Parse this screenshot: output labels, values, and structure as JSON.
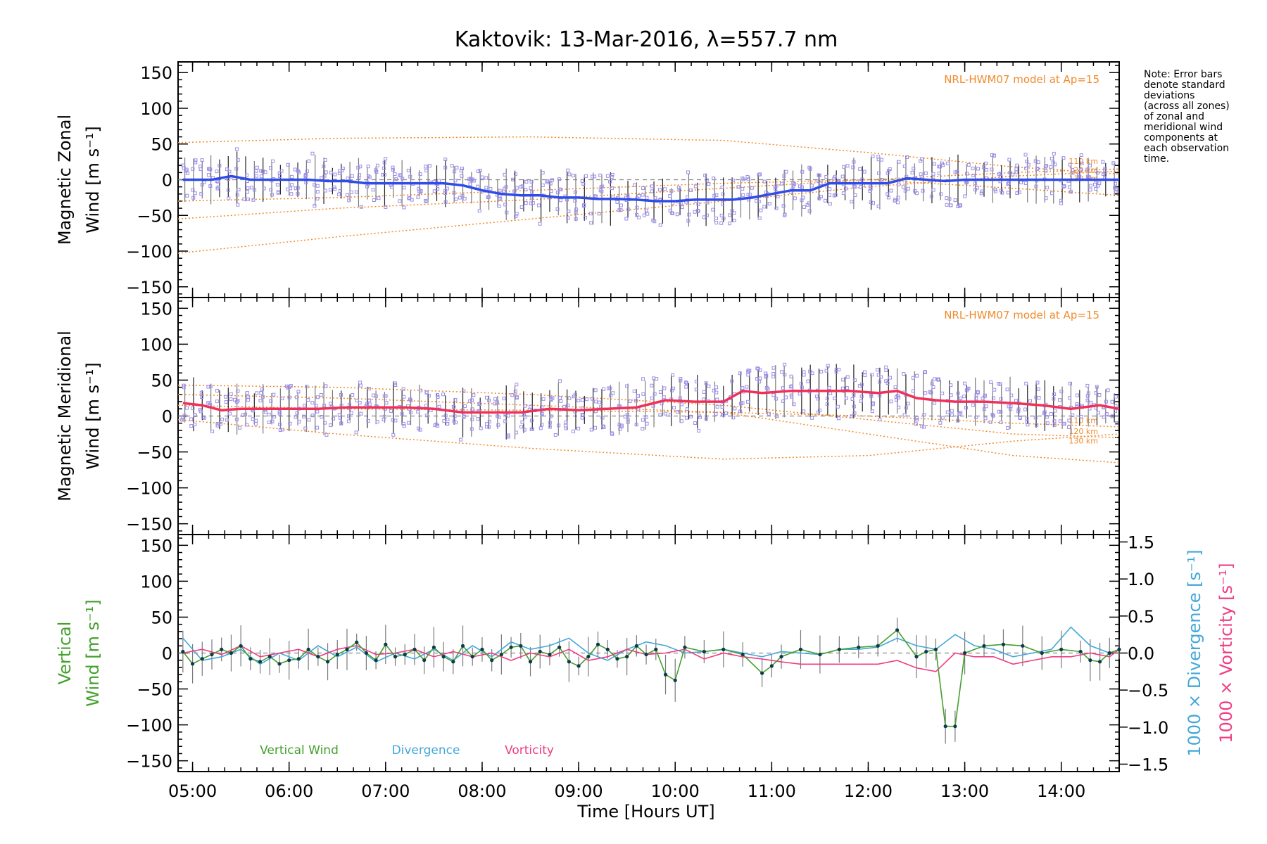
{
  "title": "Kaktovik: 13-Mar-2016, λ=557.7 nm",
  "note": [
    "Note: Error bars",
    "denote standard",
    "deviations",
    "(across all zones)",
    "of zonal and",
    "meridional wind",
    "components at",
    "each observation",
    "time."
  ],
  "colors": {
    "zonal": "#2f4be8",
    "meridional": "#f0305a",
    "vertical": "#44a02c",
    "divergence": "#44a7d8",
    "vorticity": "#f03c82",
    "model": "#f28a2a",
    "observations": "#9b8fe6"
  },
  "chart_data": [
    {
      "type": "line",
      "panel": "zonal",
      "ylabel": [
        "Magnetic Zonal",
        "Wind [m s⁻¹]"
      ],
      "ylim": [
        -165,
        165
      ],
      "yticks": [
        150,
        100,
        50,
        0,
        -50,
        -100,
        -150
      ],
      "xlim": [
        4.85,
        14.6
      ],
      "model_label": "NRL-HWM07 model at Ap=15",
      "model_heights": [
        "110 km",
        "120 km",
        "130 km"
      ],
      "series": [
        {
          "name": "Magnetic Zonal Wind",
          "x": [
            4.9,
            5.2,
            5.4,
            5.6,
            5.8,
            6.0,
            6.2,
            6.4,
            6.6,
            6.8,
            7.0,
            7.2,
            7.4,
            7.6,
            7.8,
            8.0,
            8.2,
            8.4,
            8.6,
            8.8,
            9.0,
            9.2,
            9.4,
            9.6,
            9.8,
            10.0,
            10.2,
            10.4,
            10.6,
            10.8,
            11.0,
            11.2,
            11.4,
            11.6,
            11.8,
            12.0,
            12.2,
            12.4,
            12.6,
            12.8,
            13.0,
            13.2,
            13.4,
            13.6,
            13.8,
            14.0,
            14.2,
            14.4,
            14.6
          ],
          "y": [
            0,
            0,
            5,
            0,
            0,
            0,
            0,
            -2,
            -2,
            -5,
            -5,
            -5,
            -5,
            -5,
            -8,
            -15,
            -20,
            -22,
            -22,
            -25,
            -25,
            -27,
            -27,
            -28,
            -30,
            -30,
            -28,
            -28,
            -28,
            -25,
            -20,
            -15,
            -15,
            -5,
            -5,
            -5,
            -5,
            2,
            0,
            -2,
            0,
            0,
            0,
            0,
            0,
            0,
            0,
            0,
            0
          ]
        }
      ],
      "model_curves": [
        {
          "x": [
            4.85,
            6.5,
            8.5,
            10.5,
            12.0,
            13.5,
            14.6
          ],
          "y": [
            52,
            58,
            60,
            55,
            38,
            18,
            8
          ]
        },
        {
          "x": [
            4.85,
            6.5,
            8.5,
            10.5,
            12.0,
            13.5,
            14.6
          ],
          "y": [
            -55,
            -40,
            -28,
            -12,
            0,
            10,
            15
          ]
        },
        {
          "x": [
            4.85,
            6.5,
            8.5,
            10.5,
            12.0,
            13.5,
            14.6
          ],
          "y": [
            -103,
            -80,
            -55,
            -30,
            -10,
            5,
            12
          ]
        },
        {
          "x": [
            4.85,
            6.5,
            8.5,
            10.5,
            12.0,
            13.5,
            14.6
          ],
          "y": [
            -30,
            -25,
            -15,
            -5,
            0,
            -12,
            -22
          ]
        }
      ]
    },
    {
      "type": "line",
      "panel": "meridional",
      "ylabel": [
        "Magnetic Meridional",
        "Wind [m s⁻¹]"
      ],
      "ylim": [
        -165,
        165
      ],
      "yticks": [
        150,
        100,
        50,
        0,
        -50,
        -100,
        -150
      ],
      "xlim": [
        4.85,
        14.6
      ],
      "model_label": "NRL-HWM07 model at Ap=15",
      "model_heights": [
        "110 km",
        "120 km",
        "130 km"
      ],
      "series": [
        {
          "name": "Magnetic Meridional Wind",
          "x": [
            4.9,
            5.1,
            5.3,
            5.5,
            5.7,
            6.0,
            6.3,
            6.6,
            6.9,
            7.2,
            7.5,
            7.8,
            8.1,
            8.4,
            8.7,
            9.0,
            9.3,
            9.6,
            9.9,
            10.2,
            10.5,
            10.7,
            10.9,
            11.2,
            11.5,
            11.8,
            12.1,
            12.3,
            12.5,
            12.7,
            12.9,
            13.2,
            13.5,
            13.8,
            14.1,
            14.4,
            14.6
          ],
          "y": [
            18,
            15,
            8,
            10,
            10,
            10,
            10,
            12,
            12,
            12,
            10,
            5,
            5,
            5,
            10,
            8,
            10,
            12,
            22,
            20,
            20,
            35,
            32,
            35,
            35,
            35,
            32,
            35,
            25,
            22,
            20,
            20,
            18,
            15,
            10,
            15,
            10
          ]
        }
      ],
      "model_curves": [
        {
          "x": [
            4.85,
            6.5,
            8.5,
            10.5,
            12.0,
            13.5,
            14.6
          ],
          "y": [
            43,
            40,
            30,
            15,
            -5,
            -25,
            -30
          ]
        },
        {
          "x": [
            4.85,
            6.5,
            8.5,
            10.5,
            12.0,
            13.5,
            14.6
          ],
          "y": [
            -5,
            -25,
            -45,
            -60,
            -55,
            -35,
            -25
          ]
        },
        {
          "x": [
            4.85,
            6.5,
            8.5,
            10.5,
            12.0,
            13.5,
            14.6
          ],
          "y": [
            30,
            25,
            15,
            5,
            -25,
            -55,
            -65
          ]
        },
        {
          "x": [
            4.85,
            6.5,
            8.5,
            10.5,
            12.0,
            13.5,
            14.6
          ],
          "y": [
            15,
            10,
            8,
            5,
            0,
            -10,
            -15
          ]
        }
      ]
    },
    {
      "type": "line",
      "panel": "vertical",
      "ylabel": [
        "Vertical",
        "Wind [m s⁻¹]"
      ],
      "ylim": [
        -165,
        165
      ],
      "yticks": [
        150,
        100,
        50,
        0,
        -50,
        -100,
        -150
      ],
      "y2label_divergence": "1000 × Divergence [s⁻¹]",
      "y2label_vorticity": "1000 × Vorticity [s⁻¹]",
      "y2lim": [
        -1.6,
        1.6
      ],
      "y2ticks": [
        "1.5",
        "1.0",
        "0.5",
        "0.0",
        "−0.5",
        "−1.0",
        "−1.5"
      ],
      "y2tickvals": [
        1.5,
        1.0,
        0.5,
        0.0,
        -0.5,
        -1.0,
        -1.5
      ],
      "xlim": [
        4.85,
        14.6
      ],
      "xlabel": "Time [Hours UT]",
      "xtick_labels": [
        "05:00",
        "06:00",
        "07:00",
        "08:00",
        "09:00",
        "10:00",
        "11:00",
        "12:00",
        "13:00",
        "14:00"
      ],
      "xtick_values": [
        5,
        6,
        7,
        8,
        9,
        10,
        11,
        12,
        13,
        14
      ],
      "legend": [
        "Vertical Wind",
        "Divergence",
        "Vorticity"
      ],
      "series": [
        {
          "name": "Vertical Wind",
          "x": [
            4.9,
            5.0,
            5.1,
            5.2,
            5.3,
            5.4,
            5.5,
            5.6,
            5.7,
            5.8,
            5.9,
            6.0,
            6.1,
            6.2,
            6.3,
            6.4,
            6.5,
            6.6,
            6.7,
            6.8,
            6.9,
            7.0,
            7.1,
            7.2,
            7.3,
            7.4,
            7.5,
            7.6,
            7.7,
            7.8,
            7.9,
            8.0,
            8.1,
            8.2,
            8.3,
            8.4,
            8.5,
            8.6,
            8.7,
            8.8,
            8.9,
            9.0,
            9.1,
            9.2,
            9.3,
            9.4,
            9.5,
            9.6,
            9.7,
            9.8,
            9.9,
            10.0,
            10.1,
            10.3,
            10.5,
            10.7,
            10.9,
            11.0,
            11.1,
            11.3,
            11.5,
            11.7,
            11.9,
            12.1,
            12.3,
            12.5,
            12.6,
            12.7,
            12.8,
            12.9,
            13.0,
            13.2,
            13.4,
            13.6,
            13.8,
            14.0,
            14.2,
            14.3,
            14.4,
            14.5,
            14.6
          ],
          "y": [
            2,
            -15,
            -8,
            -2,
            5,
            0,
            10,
            -8,
            -12,
            -5,
            -15,
            -10,
            -8,
            5,
            -5,
            -12,
            -2,
            5,
            15,
            0,
            -10,
            12,
            -5,
            -2,
            5,
            -10,
            8,
            -5,
            -12,
            10,
            -5,
            5,
            -10,
            -2,
            8,
            10,
            -12,
            2,
            -2,
            8,
            -12,
            -18,
            -5,
            12,
            5,
            -8,
            -5,
            10,
            -2,
            5,
            -30,
            -38,
            8,
            2,
            5,
            -2,
            -28,
            -18,
            -5,
            5,
            -2,
            5,
            8,
            10,
            32,
            -5,
            2,
            5,
            -102,
            -102,
            0,
            10,
            12,
            10,
            0,
            5,
            2,
            -10,
            -12,
            0,
            5
          ]
        },
        {
          "name": "Divergence",
          "x": [
            4.9,
            5.1,
            5.3,
            5.5,
            5.7,
            5.9,
            6.1,
            6.3,
            6.5,
            6.7,
            6.9,
            7.1,
            7.3,
            7.5,
            7.7,
            7.9,
            8.1,
            8.3,
            8.5,
            8.7,
            8.9,
            9.1,
            9.3,
            9.5,
            9.7,
            9.9,
            10.1,
            10.3,
            10.5,
            10.7,
            10.9,
            11.1,
            11.3,
            11.5,
            11.7,
            11.9,
            12.1,
            12.3,
            12.5,
            12.7,
            12.9,
            13.1,
            13.3,
            13.5,
            13.7,
            13.9,
            14.1,
            14.3,
            14.5,
            14.6
          ],
          "y": [
            0.2,
            -0.1,
            -0.05,
            0.05,
            -0.15,
            0.0,
            -0.1,
            0.1,
            -0.05,
            0.08,
            -0.12,
            0.0,
            -0.08,
            0.05,
            -0.1,
            0.1,
            -0.05,
            0.15,
            0.05,
            0.1,
            0.2,
            0.0,
            -0.1,
            0.05,
            0.15,
            0.1,
            0.0,
            0.02,
            0.05,
            0.0,
            -0.05,
            0.02,
            0.0,
            -0.02,
            0.05,
            0.05,
            0.08,
            0.2,
            0.1,
            0.05,
            0.25,
            0.1,
            0.05,
            -0.05,
            0.0,
            0.05,
            0.35,
            0.1,
            0.0,
            0.05
          ]
        },
        {
          "name": "Vorticity",
          "x": [
            4.9,
            5.1,
            5.3,
            5.5,
            5.7,
            5.9,
            6.1,
            6.3,
            6.5,
            6.7,
            6.9,
            7.1,
            7.3,
            7.5,
            7.7,
            7.9,
            8.1,
            8.3,
            8.5,
            8.7,
            8.9,
            9.1,
            9.3,
            9.5,
            9.7,
            9.9,
            10.1,
            10.3,
            10.5,
            10.7,
            10.9,
            11.1,
            11.3,
            11.5,
            11.7,
            11.9,
            12.1,
            12.3,
            12.5,
            12.7,
            12.9,
            13.1,
            13.3,
            13.5,
            13.7,
            13.9,
            14.1,
            14.3,
            14.5,
            14.6
          ],
          "y": [
            0.0,
            0.05,
            -0.02,
            0.1,
            -0.05,
            0.0,
            0.05,
            -0.05,
            0.05,
            0.1,
            -0.02,
            0.0,
            0.05,
            -0.05,
            0.02,
            -0.05,
            0.0,
            -0.1,
            0.0,
            -0.05,
            0.05,
            -0.1,
            -0.05,
            0.05,
            -0.02,
            0.0,
            0.05,
            -0.08,
            0.0,
            -0.05,
            -0.08,
            -0.12,
            -0.15,
            -0.15,
            -0.15,
            -0.15,
            -0.15,
            -0.1,
            -0.2,
            -0.25,
            0.0,
            -0.05,
            -0.05,
            -0.15,
            -0.1,
            -0.05,
            -0.05,
            0.0,
            -0.05,
            0.05
          ]
        }
      ]
    }
  ]
}
